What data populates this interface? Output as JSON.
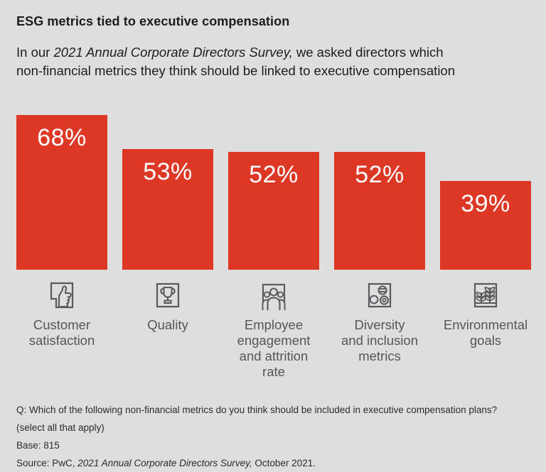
{
  "header": {
    "title": "ESG metrics tied to executive compensation",
    "subtitle_prefix": "In our ",
    "subtitle_italic": "2021 Annual Corporate Directors Survey,",
    "subtitle_suffix": " we asked directors which\nnon-financial metrics they think should be linked to executive compensation"
  },
  "chart_data": {
    "type": "bar",
    "title": "ESG metrics tied to executive compensation",
    "categories": [
      "Customer satisfaction",
      "Quality",
      "Employee engagement and attrition rate",
      "Diversity and inclusion metrics",
      "Environmental goals"
    ],
    "values": [
      68,
      53,
      52,
      52,
      39
    ],
    "unit": "%",
    "value_labels": [
      "68%",
      "53%",
      "52%",
      "52%",
      "39%"
    ],
    "category_lines": [
      "Customer\nsatisfaction",
      "Quality",
      "Employee\nengagement\nand attrition rate",
      "Diversity\nand inclusion\nmetrics",
      "Environmental\ngoals"
    ],
    "icons": [
      "thumbs-up-icon",
      "trophy-icon",
      "people-group-icon",
      "diversity-circles-icon",
      "plant-growth-icon"
    ],
    "ylim": [
      0,
      100
    ],
    "grid": false,
    "legend": "none",
    "bar_color": "#dd3826",
    "value_label_color": "#ffffff"
  },
  "footer": {
    "question": "Q: Which of the following non-financial metrics do you think should be included in executive compensation plans?",
    "select_note": "(select all that apply)",
    "base": "Base: 815",
    "source_prefix": "Source: PwC, ",
    "source_italic": "2021 Annual Corporate Directors Survey,",
    "source_suffix": " October 2021."
  },
  "colors": {
    "background": "#dedede",
    "bar": "#dd3826",
    "title_text": "#1c1c1e",
    "category_text": "#55565a",
    "icon_stroke": "#595a5e",
    "footnote_text": "#2b2b2b"
  }
}
